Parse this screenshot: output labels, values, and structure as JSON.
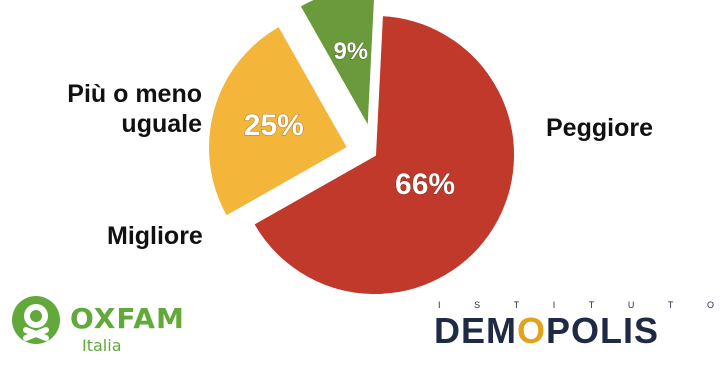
{
  "chart_data": {
    "type": "pie",
    "title": "",
    "slices": [
      {
        "label": "Peggiore",
        "value": 66,
        "value_label": "66%",
        "color": "#c0392b",
        "exploded": false
      },
      {
        "label": "Più o meno uguale",
        "label_lines": [
          "Più o meno",
          "uguale"
        ],
        "value": 25,
        "value_label": "25%",
        "color": "#f3b53a",
        "exploded": true
      },
      {
        "label": "Migliore",
        "value": 9,
        "value_label": "9%",
        "color": "#6b9a3c",
        "exploded": true
      }
    ]
  },
  "logos": {
    "oxfam": {
      "name": "OXFAM",
      "subtitle": "Italia",
      "color": "#62a83b"
    },
    "demopolis": {
      "top_letters": [
        "I",
        "S",
        "T",
        "I",
        "T",
        "U",
        "T",
        "O"
      ],
      "name_before": "DEM",
      "name_o": "O",
      "name_after": "POLIS",
      "color": "#1f2a44",
      "accent": "#e2a21a"
    }
  }
}
